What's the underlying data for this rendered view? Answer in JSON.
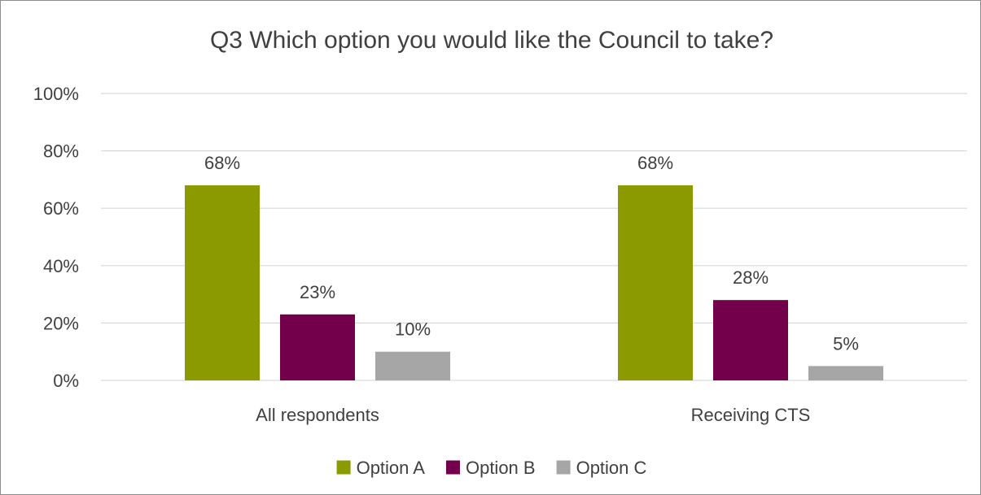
{
  "chart_data": {
    "type": "bar",
    "title": "Q3 Which option you would like the Council to take?",
    "categories": [
      "All respondents",
      "Receiving CTS"
    ],
    "series": [
      {
        "name": "Option A",
        "values": [
          68,
          68
        ],
        "labels": [
          "68%",
          "68%"
        ],
        "color": "#8b9a00"
      },
      {
        "name": "Option B",
        "values": [
          23,
          28
        ],
        "labels": [
          "23%",
          "28%"
        ],
        "color": "#72004a"
      },
      {
        "name": "Option C",
        "values": [
          10,
          5
        ],
        "labels": [
          "10%",
          "5%"
        ],
        "color": "#a6a6a6"
      }
    ],
    "ylim": [
      0,
      100
    ],
    "yticks": [
      0,
      20,
      40,
      60,
      80,
      100
    ],
    "ytick_labels": [
      "0%",
      "20%",
      "40%",
      "60%",
      "80%",
      "100%"
    ],
    "xlabel": "",
    "ylabel": "",
    "grid": true,
    "legend_position": "bottom"
  }
}
